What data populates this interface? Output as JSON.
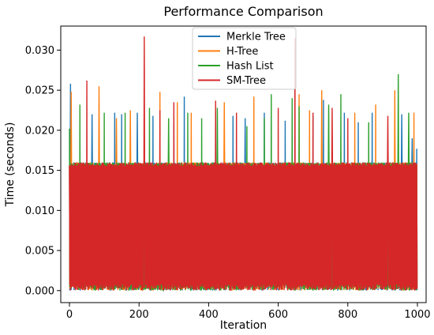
{
  "chart_data": {
    "type": "line",
    "title": "Performance Comparison",
    "xlabel": "Iteration",
    "ylabel": "Time (seconds)",
    "xlim": [
      -25,
      1025
    ],
    "ylim": [
      -0.0015,
      0.033
    ],
    "x_ticks": [
      0,
      200,
      400,
      600,
      800,
      1000
    ],
    "x_tick_labels": [
      "0",
      "200",
      "400",
      "600",
      "800",
      "1000"
    ],
    "y_ticks": [
      0.0,
      0.005,
      0.01,
      0.015,
      0.02,
      0.025,
      0.03
    ],
    "y_tick_labels": [
      "0.000",
      "0.005",
      "0.010",
      "0.015",
      "0.020",
      "0.025",
      "0.030"
    ],
    "legend_position": "top-center",
    "grid": false,
    "series": [
      {
        "name": "Merkle Tree",
        "color": "#1f77b4",
        "baseline": 0.016,
        "spikes": [
          [
            3,
            0.0258
          ],
          [
            65,
            0.022
          ],
          [
            130,
            0.0222
          ],
          [
            150,
            0.022
          ],
          [
            195,
            0.0222
          ],
          [
            240,
            0.0218
          ],
          [
            300,
            0.021
          ],
          [
            330,
            0.0242
          ],
          [
            420,
            0.0222
          ],
          [
            470,
            0.0218
          ],
          [
            505,
            0.0215
          ],
          [
            560,
            0.0222
          ],
          [
            620,
            0.0212
          ],
          [
            700,
            0.0218
          ],
          [
            730,
            0.0238
          ],
          [
            790,
            0.0222
          ],
          [
            830,
            0.021
          ],
          [
            870,
            0.0222
          ],
          [
            955,
            0.022
          ],
          [
            985,
            0.019
          ],
          [
            998,
            0.0177
          ]
        ]
      },
      {
        "name": "H-Tree",
        "color": "#ff7f0e",
        "baseline": 0.016,
        "spikes": [
          [
            5,
            0.0248
          ],
          [
            85,
            0.0255
          ],
          [
            135,
            0.0215
          ],
          [
            175,
            0.0225
          ],
          [
            260,
            0.0248
          ],
          [
            310,
            0.0235
          ],
          [
            350,
            0.0222
          ],
          [
            445,
            0.0235
          ],
          [
            530,
            0.0242
          ],
          [
            660,
            0.0245
          ],
          [
            690,
            0.0225
          ],
          [
            725,
            0.025
          ],
          [
            820,
            0.0222
          ],
          [
            880,
            0.0232
          ],
          [
            935,
            0.025
          ],
          [
            990,
            0.0222
          ]
        ]
      },
      {
        "name": "Hash List",
        "color": "#2ca02c",
        "baseline": 0.016,
        "spikes": [
          [
            0,
            0.0202
          ],
          [
            30,
            0.0232
          ],
          [
            100,
            0.0222
          ],
          [
            160,
            0.0222
          ],
          [
            230,
            0.0228
          ],
          [
            285,
            0.0215
          ],
          [
            340,
            0.0222
          ],
          [
            380,
            0.0215
          ],
          [
            425,
            0.0228
          ],
          [
            510,
            0.0205
          ],
          [
            560,
            0.0215
          ],
          [
            580,
            0.0245
          ],
          [
            640,
            0.024
          ],
          [
            660,
            0.023
          ],
          [
            745,
            0.0232
          ],
          [
            780,
            0.0245
          ],
          [
            860,
            0.021
          ],
          [
            945,
            0.027
          ],
          [
            975,
            0.0222
          ]
        ],
        "drops": [
          [
            75,
            0.0
          ],
          [
            145,
            0.0
          ],
          [
            270,
            0.0
          ],
          [
            348,
            0.0
          ],
          [
            648,
            0.0
          ],
          [
            700,
            0.0
          ]
        ]
      },
      {
        "name": "SM-Tree",
        "color": "#d62728",
        "baseline": 0.016,
        "spikes": [
          [
            50,
            0.0262
          ],
          [
            215,
            0.0317
          ],
          [
            260,
            0.0225
          ],
          [
            300,
            0.0235
          ],
          [
            420,
            0.0237
          ],
          [
            480,
            0.0222
          ],
          [
            600,
            0.0228
          ],
          [
            648,
            0.0315
          ],
          [
            700,
            0.0222
          ],
          [
            755,
            0.0228
          ],
          [
            800,
            0.0215
          ],
          [
            915,
            0.0218
          ]
        ]
      }
    ]
  }
}
